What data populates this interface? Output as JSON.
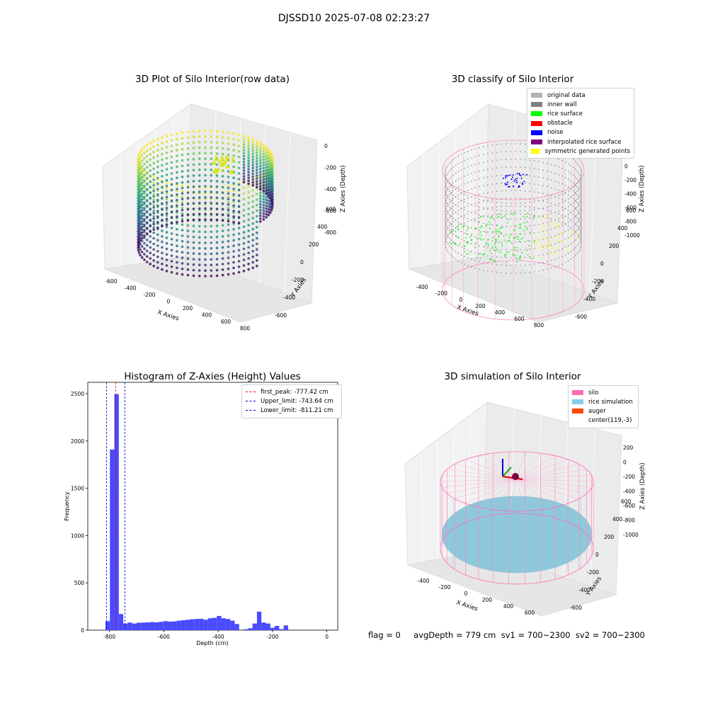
{
  "suptitle": "DJSSD10 2025-07-08 02:23:27",
  "footer": "flag = 0     avgDepth = 779 cm  sv1 = 700~2300  sv2 = 700~2300",
  "chart_data": [
    {
      "type": "scatter3d",
      "title": "3D Plot of Silo Interior(row data)",
      "xlabel": "X Axies",
      "ylabel": "Y Axies",
      "zlabel": "Z Axies (Depth)",
      "xticks": [
        "-600",
        "-400",
        "-200",
        "0",
        "200",
        "400",
        "600",
        "800"
      ],
      "yticks": [
        "-600",
        "-400",
        "-200",
        "0",
        "200",
        "400",
        "600"
      ],
      "zticks": [
        "0",
        "-200",
        "-400",
        "-600",
        "-800"
      ],
      "colormap": "viridis"
    },
    {
      "type": "scatter3d",
      "title": "3D classify of Silo Interior",
      "xlabel": "X Axies",
      "ylabel": "Y Axies",
      "zlabel": "Z Axies (Depth)",
      "xticks": [
        "-400",
        "-200",
        "0",
        "200",
        "400",
        "600",
        "800"
      ],
      "yticks": [
        "-600",
        "-400",
        "-200",
        "0",
        "200",
        "400",
        "600"
      ],
      "zticks": [
        "200",
        "0",
        "-200",
        "-400",
        "-600",
        "-800",
        "-1000"
      ],
      "legend": [
        {
          "label": "original data",
          "color": "#b3b3b3"
        },
        {
          "label": "inner wall",
          "color": "#808080"
        },
        {
          "label": "rice surface",
          "color": "#00ff00"
        },
        {
          "label": "obstacle",
          "color": "#ff0000"
        },
        {
          "label": "noise",
          "color": "#0000ff"
        },
        {
          "label": "interpolated rice surface",
          "color": "#800080"
        },
        {
          "label": "symmetric generated points",
          "color": "#ffff00"
        }
      ]
    },
    {
      "type": "bar",
      "title": "Histogram of Z-Axies (Height) Values",
      "xlabel": "Depth (cm)",
      "ylabel": "Frequency",
      "xlim": [
        -880,
        40
      ],
      "ylim": [
        0,
        2620
      ],
      "xticks": [
        -800,
        -600,
        -400,
        -200,
        0
      ],
      "yticks": [
        0,
        500,
        1000,
        1500,
        2000,
        2500
      ],
      "bar_color": "#4a4aff",
      "bin_start": -815,
      "bin_width": 16.4,
      "values": [
        95,
        1910,
        2495,
        170,
        70,
        80,
        70,
        78,
        80,
        82,
        85,
        82,
        88,
        95,
        90,
        92,
        100,
        105,
        110,
        115,
        118,
        120,
        110,
        125,
        130,
        150,
        125,
        118,
        100,
        65,
        0,
        10,
        20,
        70,
        195,
        80,
        70,
        25,
        45,
        10,
        50
      ],
      "vlines": [
        {
          "label": "first_peak: -777.42 cm",
          "value": -777.42,
          "color": "#ff0000"
        },
        {
          "label": "Upper_limit: -743.64 cm",
          "value": -743.64,
          "color": "#0000cc"
        },
        {
          "label": "Lower_limit: -811.21 cm",
          "value": -811.21,
          "color": "#0000cc"
        }
      ]
    },
    {
      "type": "surface3d",
      "title": "3D simulation of Silo Interior",
      "xlabel": "X Axies",
      "ylabel": "Y Axies",
      "zlabel": "Z Axies (Depth)",
      "xticks": [
        "-400",
        "-200",
        "0",
        "200",
        "400",
        "600"
      ],
      "yticks": [
        "-600",
        "-400",
        "-200",
        "0",
        "200",
        "400",
        "600"
      ],
      "zticks": [
        "200",
        "0",
        "-200",
        "-400",
        "-600",
        "-800",
        "-1000"
      ],
      "legend": [
        {
          "label": "silo",
          "color": "#ff69b4"
        },
        {
          "label": "rice simulation",
          "color": "#87ceeb"
        },
        {
          "label": "auger",
          "color": "#ff4500"
        },
        {
          "label": "center(119,-3)",
          "color": "#ffffff"
        }
      ]
    }
  ]
}
